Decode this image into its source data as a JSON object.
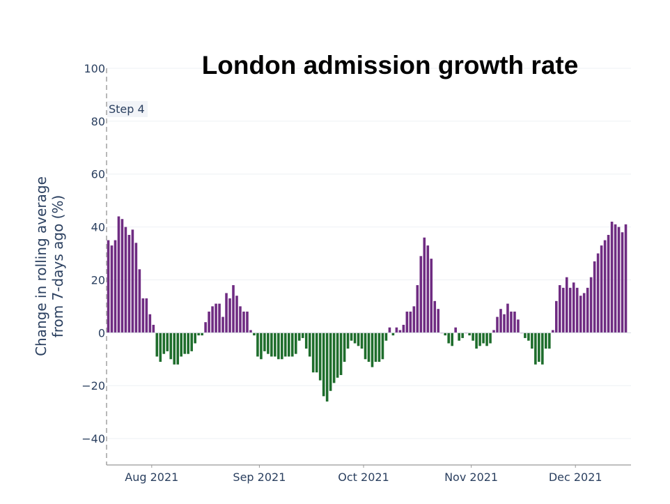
{
  "chart_data": {
    "type": "bar",
    "title": "London admission growth rate",
    "ylabel_lines": [
      "Change in rolling average",
      "from 7-days ago (%)"
    ],
    "ylim": [
      -50,
      100
    ],
    "yticks": [
      100,
      80,
      60,
      40,
      20,
      0,
      -20,
      -40
    ],
    "ytick_labels": [
      "100",
      "80",
      "60",
      "40",
      "20",
      "0",
      "−20",
      "−40"
    ],
    "x_start_day": 0,
    "x_end_day": 151,
    "x_ticks": [
      {
        "label": "Aug 2021",
        "day": 13
      },
      {
        "label": "Sep 2021",
        "day": 44
      },
      {
        "label": "Oct 2021",
        "day": 74
      },
      {
        "label": "Nov 2021",
        "day": 105
      },
      {
        "label": "Dec 2021",
        "day": 135
      }
    ],
    "annotation": {
      "label": "Step 4",
      "day": 0
    },
    "positive_color": "#6f2c82",
    "negative_color": "#1e6d2c",
    "values": [
      35,
      33,
      35,
      44,
      43,
      40,
      37,
      39,
      34,
      24,
      13,
      13,
      7,
      3,
      -9,
      -11,
      -8,
      -7,
      -10,
      -12,
      -12,
      -9,
      -8,
      -8,
      -7,
      -4,
      -1,
      -1,
      4,
      8,
      10,
      11,
      11,
      6,
      15,
      13,
      18,
      14,
      10,
      8,
      8,
      1,
      -1,
      -9,
      -10,
      -7,
      -8,
      -9,
      -9,
      -10,
      -10,
      -9,
      -9,
      -9,
      -8,
      -3,
      -2,
      -6,
      -9,
      -15,
      -15,
      -18,
      -24,
      -26,
      -22,
      -19,
      -17,
      -16,
      -11,
      -6,
      -3,
      -4,
      -5,
      -6,
      -10,
      -11,
      -13,
      -11,
      -11,
      -10,
      -3,
      2,
      -1,
      2,
      1,
      3,
      8,
      8,
      10,
      18,
      29,
      36,
      33,
      28,
      12,
      9,
      0,
      -1,
      -4,
      -5,
      2,
      -3,
      -2,
      0,
      -1,
      -3,
      -6,
      -5,
      -4,
      -5,
      -4,
      1,
      6,
      9,
      7,
      11,
      8,
      8,
      5,
      0,
      -2,
      -3,
      -6,
      -12,
      -11,
      -12,
      -6,
      -6,
      1,
      12,
      18,
      17,
      21,
      17,
      19,
      17,
      14,
      15,
      17,
      21,
      27,
      30,
      33,
      35,
      37,
      42,
      41,
      40,
      38,
      41
    ]
  }
}
